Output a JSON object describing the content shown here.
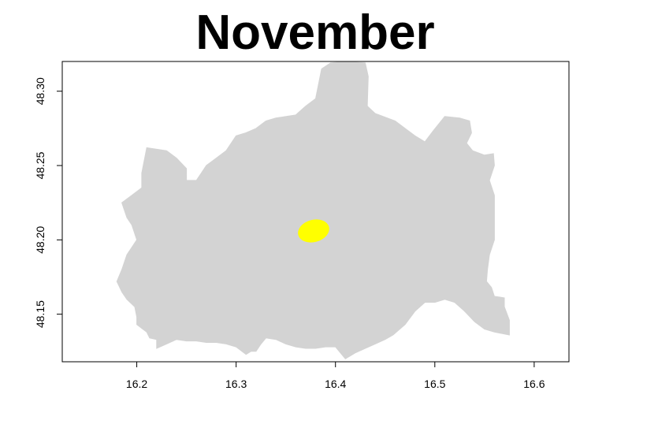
{
  "title": "November",
  "colors": {
    "region_fill": "#d3d3d3",
    "highlight_fill": "#ffff00",
    "frame": "#000000",
    "background": "#ffffff"
  },
  "chart_data": {
    "type": "map",
    "xlim": [
      16.125,
      16.635
    ],
    "ylim": [
      48.118,
      48.32
    ],
    "x_ticks": [
      {
        "value": 16.2,
        "label": "16.2"
      },
      {
        "value": 16.3,
        "label": "16.3"
      },
      {
        "value": 16.4,
        "label": "16.4"
      },
      {
        "value": 16.5,
        "label": "16.5"
      },
      {
        "value": 16.6,
        "label": "16.6"
      }
    ],
    "y_ticks": [
      {
        "value": 48.15,
        "label": "48.15"
      },
      {
        "value": 48.2,
        "label": "48.20"
      },
      {
        "value": 48.25,
        "label": "48.25"
      },
      {
        "value": 48.3,
        "label": "48.30"
      }
    ],
    "region_outline": [
      [
        16.386,
        48.315
      ],
      [
        16.395,
        48.319
      ],
      [
        16.41,
        48.32
      ],
      [
        16.43,
        48.319
      ],
      [
        16.433,
        48.31
      ],
      [
        16.432,
        48.29
      ],
      [
        16.44,
        48.285
      ],
      [
        16.46,
        48.28
      ],
      [
        16.47,
        48.275
      ],
      [
        16.48,
        48.27
      ],
      [
        16.49,
        48.266
      ],
      [
        16.498,
        48.273
      ],
      [
        16.51,
        48.283
      ],
      [
        16.525,
        48.282
      ],
      [
        16.535,
        48.28
      ],
      [
        16.537,
        48.272
      ],
      [
        16.532,
        48.265
      ],
      [
        16.538,
        48.26
      ],
      [
        16.55,
        48.257
      ],
      [
        16.559,
        48.258
      ],
      [
        16.56,
        48.25
      ],
      [
        16.555,
        48.24
      ],
      [
        16.56,
        48.23
      ],
      [
        16.56,
        48.22
      ],
      [
        16.56,
        48.21
      ],
      [
        16.56,
        48.2
      ],
      [
        16.555,
        48.19
      ],
      [
        16.553,
        48.18
      ],
      [
        16.552,
        48.172
      ],
      [
        16.557,
        48.168
      ],
      [
        16.56,
        48.162
      ],
      [
        16.57,
        48.161
      ],
      [
        16.57,
        48.155
      ],
      [
        16.575,
        48.146
      ],
      [
        16.575,
        48.136
      ],
      [
        16.56,
        48.138
      ],
      [
        16.55,
        48.14
      ],
      [
        16.54,
        48.145
      ],
      [
        16.53,
        48.152
      ],
      [
        16.52,
        48.158
      ],
      [
        16.51,
        48.16
      ],
      [
        16.5,
        48.158
      ],
      [
        16.49,
        48.158
      ],
      [
        16.48,
        48.152
      ],
      [
        16.47,
        48.143
      ],
      [
        16.458,
        48.136
      ],
      [
        16.45,
        48.133
      ],
      [
        16.44,
        48.13
      ],
      [
        16.43,
        48.127
      ],
      [
        16.42,
        48.124
      ],
      [
        16.41,
        48.12
      ],
      [
        16.405,
        48.124
      ],
      [
        16.4,
        48.128
      ],
      [
        16.39,
        48.128
      ],
      [
        16.38,
        48.127
      ],
      [
        16.37,
        48.127
      ],
      [
        16.36,
        48.128
      ],
      [
        16.35,
        48.13
      ],
      [
        16.34,
        48.133
      ],
      [
        16.33,
        48.134
      ],
      [
        16.325,
        48.13
      ],
      [
        16.32,
        48.125
      ],
      [
        16.315,
        48.125
      ],
      [
        16.31,
        48.123
      ],
      [
        16.3,
        48.128
      ],
      [
        16.29,
        48.13
      ],
      [
        16.28,
        48.131
      ],
      [
        16.27,
        48.131
      ],
      [
        16.26,
        48.132
      ],
      [
        16.25,
        48.132
      ],
      [
        16.24,
        48.133
      ],
      [
        16.23,
        48.13
      ],
      [
        16.22,
        48.127
      ],
      [
        16.22,
        48.133
      ],
      [
        16.213,
        48.134
      ],
      [
        16.21,
        48.138
      ],
      [
        16.2,
        48.143
      ],
      [
        16.2,
        48.148
      ],
      [
        16.198,
        48.155
      ],
      [
        16.19,
        48.16
      ],
      [
        16.185,
        48.165
      ],
      [
        16.18,
        48.172
      ],
      [
        16.185,
        48.18
      ],
      [
        16.19,
        48.19
      ],
      [
        16.195,
        48.195
      ],
      [
        16.2,
        48.2
      ],
      [
        16.195,
        48.21
      ],
      [
        16.19,
        48.215
      ],
      [
        16.185,
        48.225
      ],
      [
        16.195,
        48.23
      ],
      [
        16.205,
        48.235
      ],
      [
        16.205,
        48.245
      ],
      [
        16.21,
        48.262
      ],
      [
        16.23,
        48.26
      ],
      [
        16.24,
        48.255
      ],
      [
        16.25,
        48.248
      ],
      [
        16.25,
        48.24
      ],
      [
        16.26,
        48.24
      ],
      [
        16.265,
        48.245
      ],
      [
        16.27,
        48.25
      ],
      [
        16.28,
        48.255
      ],
      [
        16.29,
        48.26
      ],
      [
        16.3,
        48.27
      ],
      [
        16.31,
        48.272
      ],
      [
        16.32,
        48.275
      ],
      [
        16.33,
        48.28
      ],
      [
        16.34,
        48.282
      ],
      [
        16.36,
        48.284
      ],
      [
        16.37,
        48.29
      ],
      [
        16.38,
        48.295
      ],
      [
        16.383,
        48.305
      ]
    ],
    "highlight_region": {
      "center": [
        16.378,
        48.206
      ],
      "radius_x": 0.016,
      "radius_y": 0.0075,
      "rotation_deg": -15
    }
  }
}
